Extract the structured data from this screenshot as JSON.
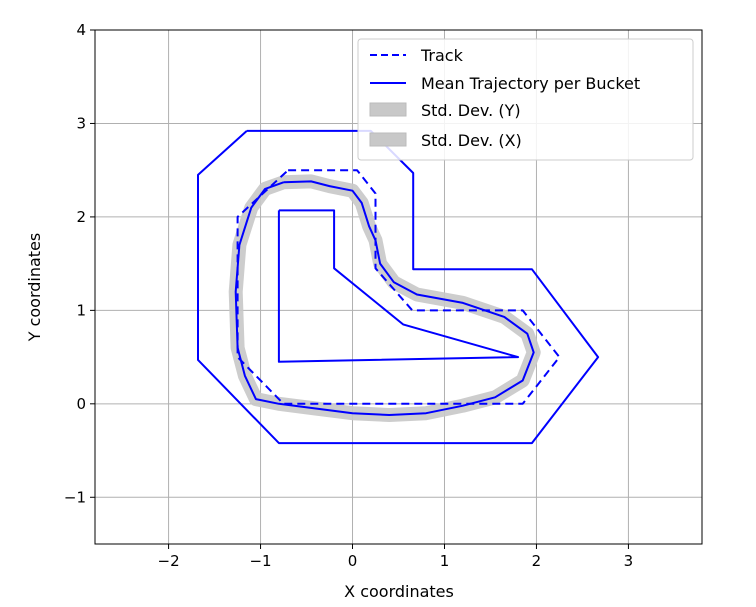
{
  "chart_data": {
    "type": "line",
    "xlabel": "X coordinates",
    "ylabel": "Y coordinates",
    "xlim": [
      -2.8,
      3.8
    ],
    "ylim": [
      -1.5,
      4.0
    ],
    "xticks": [
      -2,
      -1,
      0,
      1,
      2,
      3
    ],
    "yticks": [
      -1,
      0,
      1,
      2,
      3,
      4
    ],
    "xtick_labels": [
      "−2",
      "−1",
      "0",
      "1",
      "2",
      "3"
    ],
    "ytick_labels": [
      "−1",
      "0",
      "1",
      "2",
      "3",
      "4"
    ],
    "grid": true,
    "legend_position": "top-right",
    "legend": [
      {
        "label": "Track",
        "style": "dashed-line",
        "color": "#0000ff"
      },
      {
        "label": "Mean Trajectory per Bucket",
        "style": "solid-line",
        "color": "#0000ff"
      },
      {
        "label": "Std. Dev. (Y)",
        "style": "patch",
        "color": "#c8c8c8"
      },
      {
        "label": "Std. Dev. (X)",
        "style": "patch",
        "color": "#c8c8c8"
      }
    ],
    "series": [
      {
        "name": "Track",
        "style": "dashed",
        "color": "#0000ff",
        "points": [
          [
            -0.7,
            2.5
          ],
          [
            0.05,
            2.5
          ],
          [
            0.25,
            2.25
          ],
          [
            0.25,
            1.45
          ],
          [
            0.65,
            1.0
          ],
          [
            1.85,
            1.0
          ],
          [
            2.25,
            0.5
          ],
          [
            1.85,
            0.0
          ],
          [
            -0.75,
            0.0
          ],
          [
            -1.25,
            0.5
          ],
          [
            -1.25,
            2.0
          ],
          [
            -0.7,
            2.5
          ]
        ]
      },
      {
        "name": "Mean Trajectory per Bucket",
        "style": "solid",
        "color": "#0000ff",
        "points": [
          [
            -0.75,
            2.37
          ],
          [
            -0.45,
            2.38
          ],
          [
            -0.25,
            2.33
          ],
          [
            0.0,
            2.28
          ],
          [
            0.1,
            2.15
          ],
          [
            0.18,
            1.9
          ],
          [
            0.25,
            1.75
          ],
          [
            0.3,
            1.5
          ],
          [
            0.45,
            1.3
          ],
          [
            0.7,
            1.17
          ],
          [
            1.2,
            1.08
          ],
          [
            1.65,
            0.93
          ],
          [
            1.9,
            0.75
          ],
          [
            1.97,
            0.55
          ],
          [
            1.85,
            0.25
          ],
          [
            1.55,
            0.07
          ],
          [
            1.2,
            -0.02
          ],
          [
            0.8,
            -0.1
          ],
          [
            0.4,
            -0.12
          ],
          [
            0.0,
            -0.1
          ],
          [
            -0.4,
            -0.05
          ],
          [
            -0.8,
            0.0
          ],
          [
            -1.05,
            0.05
          ],
          [
            -1.17,
            0.3
          ],
          [
            -1.25,
            0.6
          ],
          [
            -1.27,
            1.2
          ],
          [
            -1.23,
            1.7
          ],
          [
            -1.1,
            2.1
          ],
          [
            -0.95,
            2.3
          ],
          [
            -0.75,
            2.37
          ]
        ]
      }
    ],
    "regions": [
      {
        "name": "Track outer boundary",
        "color": "#0000ff",
        "points": [
          [
            -1.15,
            2.92
          ],
          [
            0.2,
            2.92
          ],
          [
            0.66,
            2.47
          ],
          [
            0.66,
            1.44
          ],
          [
            1.95,
            1.44
          ],
          [
            2.67,
            0.5
          ],
          [
            1.95,
            -0.42
          ],
          [
            -0.8,
            -0.42
          ],
          [
            -1.68,
            0.47
          ],
          [
            -1.68,
            2.45
          ],
          [
            -1.15,
            2.92
          ]
        ]
      },
      {
        "name": "Track inner boundary",
        "color": "#0000ff",
        "points": [
          [
            -0.8,
            2.07
          ],
          [
            -0.2,
            2.07
          ],
          [
            -0.2,
            1.45
          ],
          [
            0.55,
            0.85
          ],
          [
            1.8,
            0.5
          ],
          [
            -0.8,
            0.45
          ],
          [
            -0.8,
            2.07
          ]
        ]
      }
    ]
  }
}
